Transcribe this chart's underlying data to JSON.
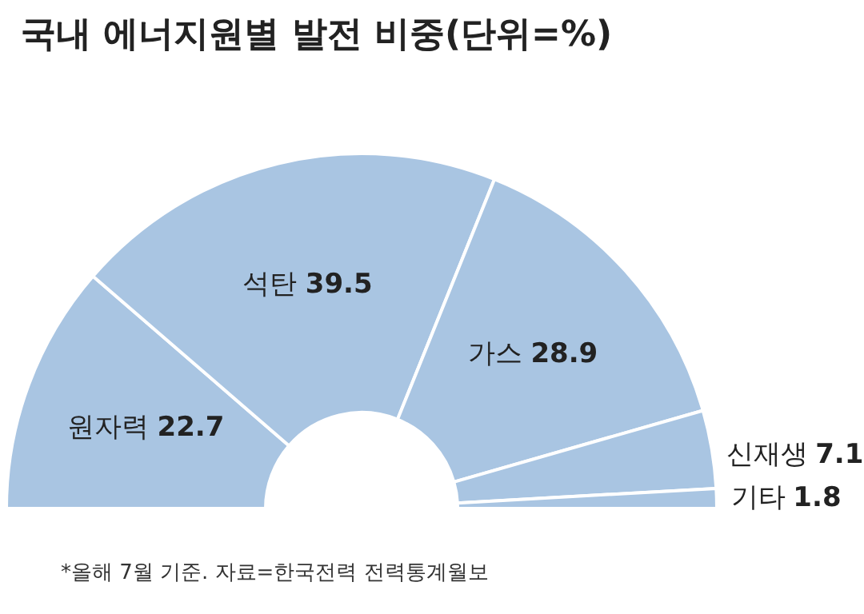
{
  "chart_data": {
    "type": "donut",
    "title": "국내 에너지원별 발전 비중(단위=%)",
    "categories": [
      "원자력",
      "석탄",
      "가스",
      "신재생",
      "기타"
    ],
    "values": [
      22.7,
      39.5,
      28.9,
      7.1,
      1.8
    ],
    "colors": [
      "#a9c5e2",
      "#a9c5e2",
      "#a9c5e2",
      "#a9c5e2",
      "#a9c5e2"
    ],
    "data_labels": true,
    "legend": false,
    "annotations": [
      "*올해 7월 기준. 자료=한국전력 전력통계월보"
    ]
  }
}
